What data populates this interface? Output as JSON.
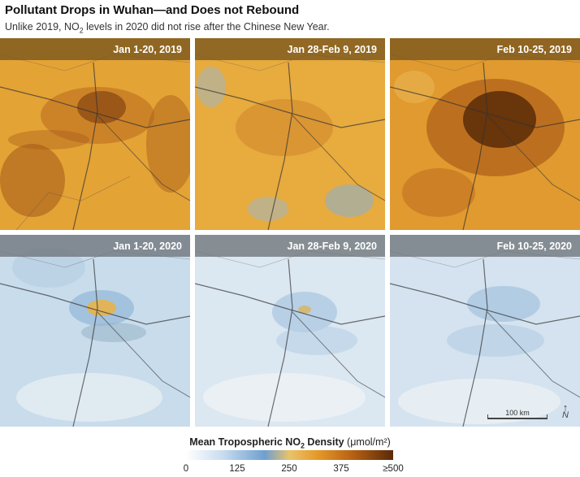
{
  "title": "Pollutant Drops in Wuhan—and Does not Rebound",
  "subtitle": {
    "before": "Unlike 2019, NO",
    "sub": "2",
    "after": " levels in 2020 did not rise after the Chinese New Year."
  },
  "panels": [
    {
      "label": "Jan 1-20, 2019",
      "year": "2019",
      "intensity": "high"
    },
    {
      "label": "Jan 28-Feb 9, 2019",
      "year": "2019",
      "intensity": "medium"
    },
    {
      "label": "Feb 10-25, 2019",
      "year": "2019",
      "intensity": "very-high"
    },
    {
      "label": "Jan 1-20, 2020",
      "year": "2020",
      "intensity": "low-medium"
    },
    {
      "label": "Jan 28-Feb 9, 2020",
      "year": "2020",
      "intensity": "low"
    },
    {
      "label": "Feb 10-25, 2020",
      "year": "2020",
      "intensity": "low"
    }
  ],
  "scalebar": {
    "label": "100 km"
  },
  "north_arrow": {
    "glyph": "↑",
    "letter": "N"
  },
  "legend": {
    "title_bold_before": "Mean Tropospheric NO",
    "title_sub": "2",
    "title_bold_after": " Density",
    "units": " (μmol/m²)",
    "ticks": [
      "0",
      "125",
      "250",
      "375",
      "≥500"
    ],
    "colors": [
      "#ffffff",
      "#6f9fd0",
      "#e59b2a",
      "#b86214",
      "#5a2a08"
    ]
  }
}
